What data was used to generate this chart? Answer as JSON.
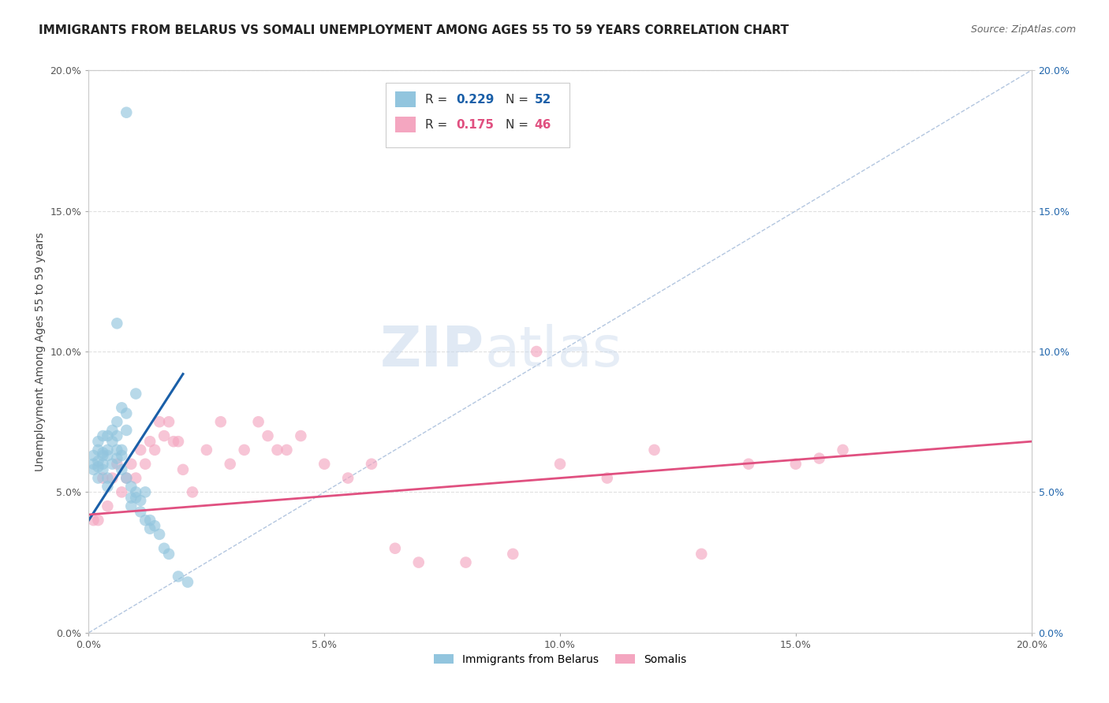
{
  "title": "IMMIGRANTS FROM BELARUS VS SOMALI UNEMPLOYMENT AMONG AGES 55 TO 59 YEARS CORRELATION CHART",
  "source": "Source: ZipAtlas.com",
  "ylabel": "Unemployment Among Ages 55 to 59 years",
  "xlim": [
    0,
    0.2
  ],
  "ylim": [
    0,
    0.2
  ],
  "legend_r1": "0.229",
  "legend_n1": "52",
  "legend_r2": "0.175",
  "legend_n2": "46",
  "color_blue": "#92c5de",
  "color_pink": "#f4a6c0",
  "color_blue_line": "#1a5fa8",
  "color_pink_line": "#e05080",
  "color_diag": "#a0b8d8",
  "watermark_zip": "ZIP",
  "watermark_atlas": "atlas",
  "blue_scatter_x": [
    0.001,
    0.001,
    0.001,
    0.002,
    0.002,
    0.002,
    0.002,
    0.002,
    0.003,
    0.003,
    0.003,
    0.003,
    0.003,
    0.004,
    0.004,
    0.004,
    0.004,
    0.004,
    0.005,
    0.005,
    0.005,
    0.006,
    0.006,
    0.006,
    0.006,
    0.006,
    0.007,
    0.007,
    0.007,
    0.007,
    0.008,
    0.008,
    0.008,
    0.008,
    0.009,
    0.009,
    0.009,
    0.01,
    0.01,
    0.01,
    0.011,
    0.011,
    0.012,
    0.012,
    0.013,
    0.013,
    0.014,
    0.015,
    0.016,
    0.017,
    0.019,
    0.021
  ],
  "blue_scatter_y": [
    0.06,
    0.063,
    0.058,
    0.065,
    0.061,
    0.059,
    0.068,
    0.055,
    0.064,
    0.07,
    0.058,
    0.063,
    0.06,
    0.07,
    0.065,
    0.063,
    0.055,
    0.052,
    0.068,
    0.06,
    0.072,
    0.075,
    0.07,
    0.065,
    0.11,
    0.062,
    0.08,
    0.065,
    0.063,
    0.058,
    0.185,
    0.078,
    0.072,
    0.055,
    0.048,
    0.052,
    0.045,
    0.085,
    0.05,
    0.048,
    0.047,
    0.043,
    0.05,
    0.04,
    0.04,
    0.037,
    0.038,
    0.035,
    0.03,
    0.028,
    0.02,
    0.018
  ],
  "pink_scatter_x": [
    0.001,
    0.002,
    0.003,
    0.004,
    0.005,
    0.006,
    0.007,
    0.008,
    0.009,
    0.01,
    0.011,
    0.012,
    0.013,
    0.014,
    0.015,
    0.016,
    0.017,
    0.018,
    0.019,
    0.02,
    0.022,
    0.025,
    0.028,
    0.03,
    0.033,
    0.036,
    0.038,
    0.04,
    0.042,
    0.045,
    0.05,
    0.055,
    0.06,
    0.065,
    0.07,
    0.08,
    0.09,
    0.095,
    0.1,
    0.11,
    0.12,
    0.13,
    0.14,
    0.15,
    0.155,
    0.16
  ],
  "pink_scatter_y": [
    0.04,
    0.04,
    0.055,
    0.045,
    0.055,
    0.06,
    0.05,
    0.055,
    0.06,
    0.055,
    0.065,
    0.06,
    0.068,
    0.065,
    0.075,
    0.07,
    0.075,
    0.068,
    0.068,
    0.058,
    0.05,
    0.065,
    0.075,
    0.06,
    0.065,
    0.075,
    0.07,
    0.065,
    0.065,
    0.07,
    0.06,
    0.055,
    0.06,
    0.03,
    0.025,
    0.025,
    0.028,
    0.1,
    0.06,
    0.055,
    0.065,
    0.028,
    0.06,
    0.06,
    0.062,
    0.065
  ],
  "blue_line_x": [
    0.0,
    0.02
  ],
  "blue_line_y": [
    0.04,
    0.092
  ],
  "pink_line_x": [
    0.0,
    0.2
  ],
  "pink_line_y": [
    0.042,
    0.068
  ],
  "grid_color": "#e0e0e0",
  "bg_color": "#ffffff",
  "title_fontsize": 11,
  "source_fontsize": 9,
  "label_fontsize": 10,
  "tick_fontsize": 9,
  "legend_fontsize": 11,
  "right_tick_color": "#2166ac",
  "scatter_size": 110,
  "scatter_alpha": 0.65
}
